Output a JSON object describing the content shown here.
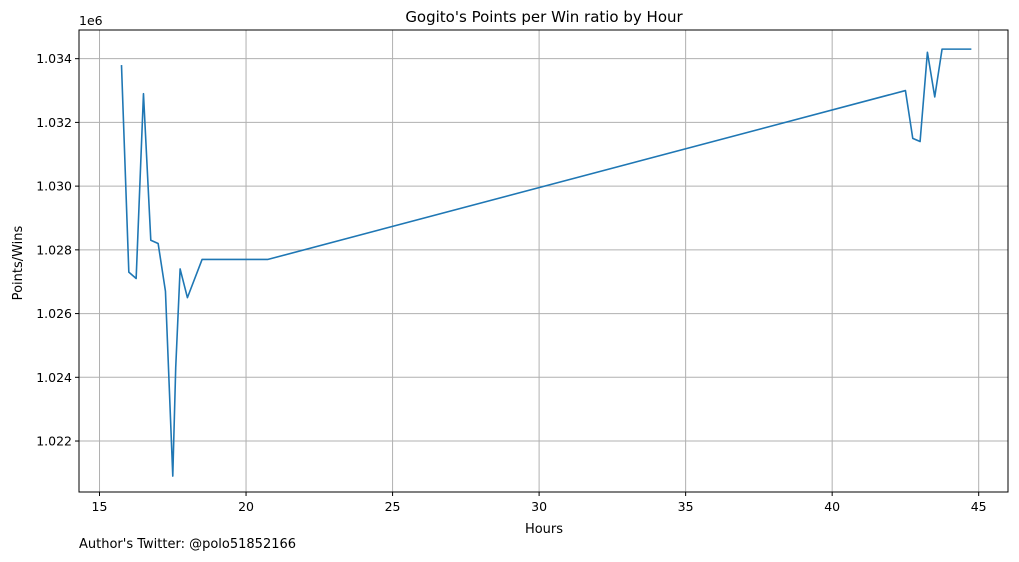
{
  "chart_data": {
    "type": "line",
    "title": "Gogito's Points per Win ratio by Hour",
    "xlabel": "Hours",
    "ylabel": "Points/Wins",
    "y_offset_label": "1e6",
    "xlim": [
      14.3,
      46.0
    ],
    "ylim": [
      1.0204,
      1.0349
    ],
    "x_ticks": [
      15,
      20,
      25,
      30,
      35,
      40,
      45
    ],
    "y_ticks": [
      1.022,
      1.024,
      1.026,
      1.028,
      1.03,
      1.032,
      1.034
    ],
    "grid": true,
    "series": [
      {
        "color": "#1f77b4",
        "x": [
          15.75,
          16.0,
          16.25,
          16.5,
          16.75,
          17.0,
          17.25,
          17.5,
          17.6,
          17.75,
          18.0,
          18.5,
          20.75,
          42.5,
          42.75,
          43.0,
          43.25,
          43.5,
          43.75,
          44.75
        ],
        "y": [
          1.0338,
          1.0273,
          1.0271,
          1.0329,
          1.0283,
          1.0282,
          1.0267,
          1.0209,
          1.0243,
          1.0274,
          1.0265,
          1.0277,
          1.0277,
          1.033,
          1.0315,
          1.0314,
          1.0342,
          1.0328,
          1.0343,
          1.0343
        ]
      }
    ]
  },
  "footer": "Author's Twitter: @polo51852166"
}
